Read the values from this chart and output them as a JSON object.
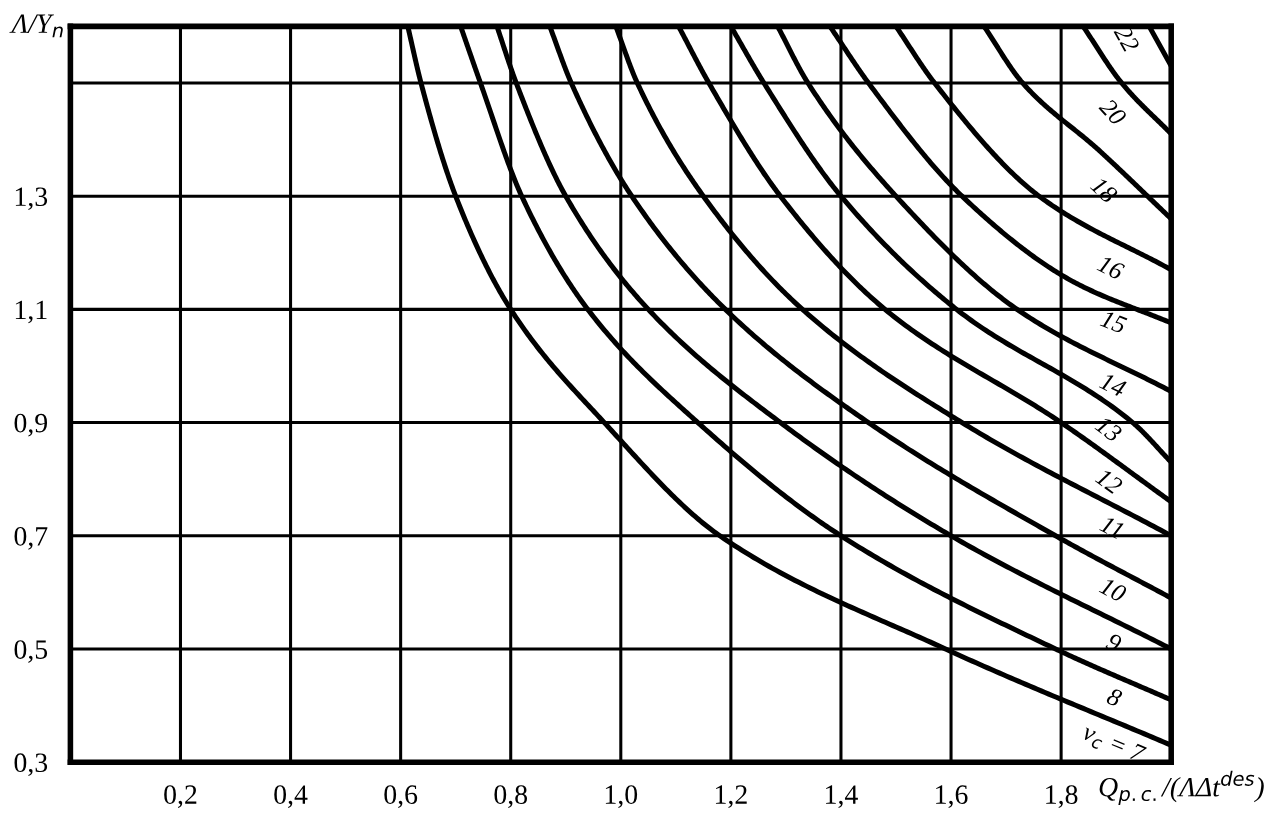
{
  "chart_data": {
    "type": "line",
    "xlabel": "Q$_{p.c.}$/(ΛΔt$^{des}$)",
    "ylabel": "Λ/Y$_{n}$",
    "xlim": [
      0,
      2.0
    ],
    "ylim": [
      0.3,
      1.6
    ],
    "xticks": [
      {
        "value": 0.2,
        "label": "0,2"
      },
      {
        "value": 0.4,
        "label": "0,4"
      },
      {
        "value": 0.6,
        "label": "0,6"
      },
      {
        "value": 0.8,
        "label": "0,8"
      },
      {
        "value": 1.0,
        "label": "1,0"
      },
      {
        "value": 1.2,
        "label": "1,2"
      },
      {
        "value": 1.4,
        "label": "1,4"
      },
      {
        "value": 1.6,
        "label": "1,6"
      },
      {
        "value": 1.8,
        "label": "1,8"
      }
    ],
    "yticks": [
      {
        "value": 0.3,
        "label": "0,3"
      },
      {
        "value": 0.5,
        "label": "0,5"
      },
      {
        "value": 0.7,
        "label": "0,7"
      },
      {
        "value": 0.9,
        "label": "0,9"
      },
      {
        "value": 1.1,
        "label": "1,1"
      },
      {
        "value": 1.3,
        "label": "1,3"
      },
      {
        "value": 1.5,
        "label": null
      }
    ],
    "grid": true,
    "legend": false,
    "marker": "none",
    "line_style": "solid",
    "series": [
      {
        "name": "ν$_{c}$ = 7",
        "color": "#000000",
        "x": [
          0.613,
          0.637,
          0.7,
          0.8,
          0.97,
          1.18,
          1.59,
          2.0
        ],
        "values": [
          1.6,
          1.5,
          1.3,
          1.1,
          0.9,
          0.7,
          0.5,
          0.33
        ]
      },
      {
        "name": "8",
        "color": "#000000",
        "x": [
          0.709,
          0.745,
          0.82,
          0.94,
          1.14,
          1.4,
          1.79,
          2.0
        ],
        "values": [
          1.6,
          1.5,
          1.3,
          1.1,
          0.9,
          0.7,
          0.5,
          0.41
        ]
      },
      {
        "name": "9",
        "color": "#000000",
        "x": [
          0.775,
          0.81,
          0.9,
          1.05,
          1.29,
          1.6,
          2.0
        ],
        "values": [
          1.6,
          1.5,
          1.3,
          1.1,
          0.9,
          0.7,
          0.5
        ]
      },
      {
        "name": "10",
        "color": "#000000",
        "x": [
          0.871,
          0.91,
          1.02,
          1.19,
          1.45,
          1.79,
          2.0
        ],
        "values": [
          1.6,
          1.5,
          1.3,
          1.1,
          0.9,
          0.7,
          0.59
        ]
      },
      {
        "name": "11",
        "color": "#000000",
        "x": [
          0.991,
          1.03,
          1.15,
          1.33,
          1.62,
          2.0
        ],
        "values": [
          1.6,
          1.5,
          1.3,
          1.1,
          0.9,
          0.7
        ]
      },
      {
        "name": "12",
        "color": "#000000",
        "x": [
          1.105,
          1.16,
          1.29,
          1.48,
          1.8,
          2.0
        ],
        "values": [
          1.6,
          1.5,
          1.3,
          1.1,
          0.9,
          0.76
        ]
      },
      {
        "name": "13",
        "color": "#000000",
        "x": [
          1.2,
          1.26,
          1.4,
          1.61,
          1.93,
          2.0
        ],
        "values": [
          1.6,
          1.5,
          1.3,
          1.1,
          0.9,
          0.83
        ]
      },
      {
        "name": "14",
        "color": "#000000",
        "x": [
          1.285,
          1.34,
          1.5,
          1.72,
          2.0
        ],
        "values": [
          1.6,
          1.5,
          1.3,
          1.1,
          0.955
        ]
      },
      {
        "name": "15",
        "color": "#000000",
        "x": [
          1.38,
          1.45,
          1.62,
          1.82,
          2.0
        ],
        "values": [
          1.6,
          1.5,
          1.3,
          1.15,
          1.076
        ]
      },
      {
        "name": "16",
        "color": "#000000",
        "x": [
          1.5,
          1.57,
          1.76,
          2.0
        ],
        "values": [
          1.6,
          1.5,
          1.3,
          1.17
        ]
      },
      {
        "name": "18",
        "color": "#000000",
        "x": [
          1.66,
          1.73,
          1.87,
          2.0
        ],
        "values": [
          1.6,
          1.5,
          1.38,
          1.26
        ]
      },
      {
        "name": "20",
        "color": "#000000",
        "x": [
          1.84,
          1.91,
          2.0
        ],
        "values": [
          1.6,
          1.5,
          1.41
        ]
      },
      {
        "name": "22",
        "color": "#000000",
        "x": [
          1.96,
          2.0
        ],
        "values": [
          1.6,
          1.53
        ]
      }
    ]
  }
}
